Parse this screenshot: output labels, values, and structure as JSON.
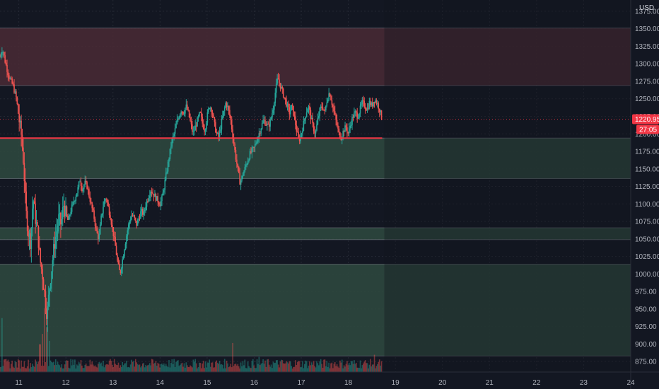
{
  "chart_data": {
    "type": "candlestick",
    "currency": "USD",
    "y_axis": {
      "min": 860,
      "max": 1383,
      "ticks": [
        875,
        900,
        925,
        950,
        975,
        1000,
        1025,
        1050,
        1075,
        1100,
        1125,
        1150,
        1175,
        1200,
        1225,
        1250,
        1275,
        1300,
        1325,
        1350,
        1375
      ],
      "tick_labels": [
        "875.00",
        "900.00",
        "925.00",
        "950.00",
        "975.00",
        "1000.00",
        "1025.00",
        "1050.00",
        "1075.00",
        "1100.00",
        "1125.00",
        "1150.00",
        "1175.00",
        "1200.00",
        "1225.00",
        "1250.00",
        "1275.00",
        "1300.00",
        "1325.00",
        "1350.00",
        "1375.00"
      ]
    },
    "x_axis": {
      "min_day": 10.6,
      "max_day": 24,
      "ticks": [
        11,
        12,
        13,
        14,
        15,
        16,
        17,
        18,
        19,
        20,
        21,
        22,
        23,
        24
      ],
      "tick_labels": [
        "11",
        "12",
        "13",
        "14",
        "15",
        "16",
        "17",
        "18",
        "19",
        "20",
        "21",
        "22",
        "23",
        "24"
      ]
    },
    "last_candle_day": 18.72,
    "zones": [
      {
        "name": "resistance-zone",
        "from": 1269,
        "to": 1351,
        "color": "#4a2a35"
      },
      {
        "name": "support-zone-1",
        "from": 1136,
        "to": 1194,
        "color": "#2f4a3f"
      },
      {
        "name": "support-zone-2",
        "from": 1049,
        "to": 1066,
        "color": "#2f4a3f"
      },
      {
        "name": "support-zone-3",
        "from": 883,
        "to": 1014,
        "color": "#2f4a3f"
      }
    ],
    "support_line": {
      "value": 1194,
      "color": "#f23645"
    },
    "price_path": [
      [
        10.6,
        1310
      ],
      [
        10.65,
        1322
      ],
      [
        10.72,
        1300
      ],
      [
        10.8,
        1280
      ],
      [
        10.88,
        1268
      ],
      [
        10.95,
        1250
      ],
      [
        11.0,
        1222
      ],
      [
        11.05,
        1200
      ],
      [
        11.1,
        1160
      ],
      [
        11.15,
        1090
      ],
      [
        11.2,
        1060
      ],
      [
        11.25,
        1045
      ],
      [
        11.3,
        1110
      ],
      [
        11.35,
        1080
      ],
      [
        11.4,
        1060
      ],
      [
        11.45,
        1020
      ],
      [
        11.5,
        1000
      ],
      [
        11.55,
        970
      ],
      [
        11.6,
        940
      ],
      [
        11.65,
        980
      ],
      [
        11.7,
        1010
      ],
      [
        11.75,
        1040
      ],
      [
        11.8,
        1060
      ],
      [
        11.85,
        1080
      ],
      [
        11.9,
        1070
      ],
      [
        11.95,
        1100
      ],
      [
        12.0,
        1085
      ],
      [
        12.05,
        1075
      ],
      [
        12.1,
        1090
      ],
      [
        12.15,
        1100
      ],
      [
        12.2,
        1110
      ],
      [
        12.25,
        1120
      ],
      [
        12.3,
        1135
      ],
      [
        12.35,
        1120
      ],
      [
        12.4,
        1130
      ],
      [
        12.45,
        1125
      ],
      [
        12.5,
        1110
      ],
      [
        12.55,
        1095
      ],
      [
        12.6,
        1080
      ],
      [
        12.65,
        1060
      ],
      [
        12.7,
        1050
      ],
      [
        12.75,
        1080
      ],
      [
        12.8,
        1100
      ],
      [
        12.85,
        1110
      ],
      [
        12.9,
        1095
      ],
      [
        12.95,
        1080
      ],
      [
        13.0,
        1060
      ],
      [
        13.05,
        1040
      ],
      [
        13.1,
        1015
      ],
      [
        13.15,
        1000
      ],
      [
        13.2,
        1020
      ],
      [
        13.25,
        1040
      ],
      [
        13.3,
        1060
      ],
      [
        13.35,
        1075
      ],
      [
        13.4,
        1085
      ],
      [
        13.45,
        1080
      ],
      [
        13.5,
        1070
      ],
      [
        13.55,
        1080
      ],
      [
        13.6,
        1090
      ],
      [
        13.65,
        1085
      ],
      [
        13.7,
        1100
      ],
      [
        13.75,
        1110
      ],
      [
        13.8,
        1120
      ],
      [
        13.85,
        1115
      ],
      [
        13.9,
        1110
      ],
      [
        13.95,
        1105
      ],
      [
        14.0,
        1100
      ],
      [
        14.05,
        1110
      ],
      [
        14.1,
        1130
      ],
      [
        14.15,
        1150
      ],
      [
        14.2,
        1170
      ],
      [
        14.25,
        1190
      ],
      [
        14.3,
        1200
      ],
      [
        14.35,
        1215
      ],
      [
        14.4,
        1225
      ],
      [
        14.45,
        1235
      ],
      [
        14.5,
        1230
      ],
      [
        14.55,
        1240
      ],
      [
        14.6,
        1230
      ],
      [
        14.65,
        1215
      ],
      [
        14.7,
        1200
      ],
      [
        14.75,
        1210
      ],
      [
        14.8,
        1220
      ],
      [
        14.85,
        1230
      ],
      [
        14.9,
        1215
      ],
      [
        14.95,
        1205
      ],
      [
        15.0,
        1225
      ],
      [
        15.05,
        1240
      ],
      [
        15.1,
        1235
      ],
      [
        15.15,
        1215
      ],
      [
        15.2,
        1200
      ],
      [
        15.25,
        1195
      ],
      [
        15.3,
        1215
      ],
      [
        15.35,
        1230
      ],
      [
        15.4,
        1245
      ],
      [
        15.45,
        1235
      ],
      [
        15.5,
        1220
      ],
      [
        15.55,
        1195
      ],
      [
        15.6,
        1170
      ],
      [
        15.65,
        1150
      ],
      [
        15.7,
        1130
      ],
      [
        15.75,
        1140
      ],
      [
        15.8,
        1150
      ],
      [
        15.85,
        1160
      ],
      [
        15.9,
        1170
      ],
      [
        15.95,
        1175
      ],
      [
        16.0,
        1180
      ],
      [
        16.05,
        1190
      ],
      [
        16.1,
        1200
      ],
      [
        16.15,
        1210
      ],
      [
        16.2,
        1220
      ],
      [
        16.25,
        1215
      ],
      [
        16.3,
        1210
      ],
      [
        16.35,
        1220
      ],
      [
        16.4,
        1235
      ],
      [
        16.45,
        1260
      ],
      [
        16.5,
        1280
      ],
      [
        16.55,
        1270
      ],
      [
        16.6,
        1260
      ],
      [
        16.65,
        1250
      ],
      [
        16.7,
        1240
      ],
      [
        16.75,
        1230
      ],
      [
        16.8,
        1240
      ],
      [
        16.85,
        1225
      ],
      [
        16.9,
        1205
      ],
      [
        16.95,
        1190
      ],
      [
        17.0,
        1200
      ],
      [
        17.05,
        1215
      ],
      [
        17.1,
        1230
      ],
      [
        17.15,
        1240
      ],
      [
        17.2,
        1225
      ],
      [
        17.25,
        1210
      ],
      [
        17.3,
        1200
      ],
      [
        17.35,
        1220
      ],
      [
        17.4,
        1235
      ],
      [
        17.45,
        1240
      ],
      [
        17.5,
        1230
      ],
      [
        17.55,
        1250
      ],
      [
        17.6,
        1260
      ],
      [
        17.65,
        1245
      ],
      [
        17.7,
        1230
      ],
      [
        17.75,
        1215
      ],
      [
        17.8,
        1200
      ],
      [
        17.85,
        1195
      ],
      [
        17.9,
        1205
      ],
      [
        17.95,
        1210
      ],
      [
        18.0,
        1200
      ],
      [
        18.05,
        1215
      ],
      [
        18.1,
        1225
      ],
      [
        18.15,
        1230
      ],
      [
        18.2,
        1225
      ],
      [
        18.25,
        1235
      ],
      [
        18.3,
        1245
      ],
      [
        18.35,
        1240
      ],
      [
        18.4,
        1235
      ],
      [
        18.45,
        1245
      ],
      [
        18.5,
        1240
      ],
      [
        18.55,
        1250
      ],
      [
        18.6,
        1245
      ],
      [
        18.65,
        1238
      ],
      [
        18.7,
        1225
      ],
      [
        18.72,
        1221
      ]
    ],
    "volume": {
      "max": 92,
      "spikes": [
        [
          10.65,
          78
        ],
        [
          11.45,
          40
        ],
        [
          11.5,
          55
        ],
        [
          11.55,
          92
        ],
        [
          11.6,
          65
        ],
        [
          11.65,
          45
        ],
        [
          15.55,
          42
        ],
        [
          16.1,
          22
        ],
        [
          18.55,
          25
        ]
      ]
    },
    "last_price": {
      "label": "1220.95",
      "value": 1220.95,
      "color": "#f23645"
    },
    "countdown": {
      "label": "27:05",
      "color": "#f23645"
    },
    "colors": {
      "up": "#26a69a",
      "down": "#ef5350",
      "grid": "#2a2e39",
      "background": "#131722",
      "text": "#b2b5be"
    }
  }
}
